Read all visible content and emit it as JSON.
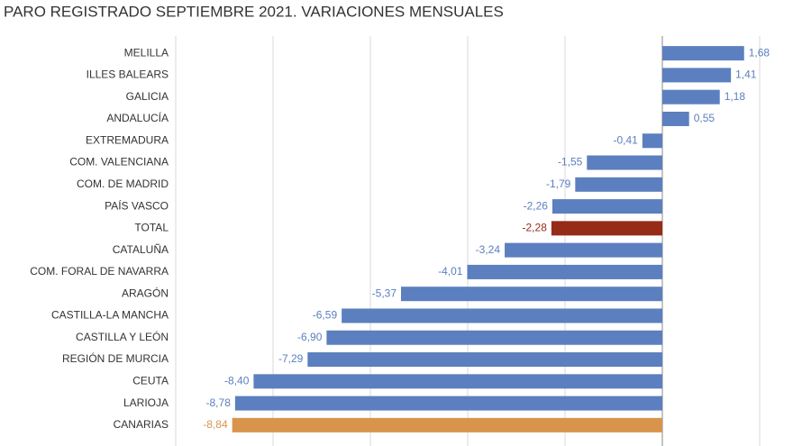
{
  "chart_data": {
    "type": "hbar",
    "title": "PARO REGISTRADO SEPTIEMBRE 2021. VARIACIONES MENSUALES",
    "categories": [
      "MELILLA",
      "ILLES BALEARS",
      "GALICIA",
      "ANDALUCÍA",
      "EXTREMADURA",
      "COM. VALENCIANA",
      "COM. DE MADRID",
      "PAÍS VASCO",
      "TOTAL",
      "CATALUÑA",
      "COM. FORAL DE NAVARRA",
      "ARAGÓN",
      "CASTILLA-LA MANCHA",
      "CASTILLA Y LEÓN",
      "REGIÓN DE MURCIA",
      "CEUTA",
      "LARIOJA",
      "CANARIAS"
    ],
    "values": [
      1.68,
      1.41,
      1.18,
      0.55,
      -0.41,
      -1.55,
      -1.79,
      -2.26,
      -2.28,
      -3.24,
      -4.01,
      -5.37,
      -6.59,
      -6.9,
      -7.29,
      -8.4,
      -8.78,
      -8.84
    ],
    "value_labels": [
      "1,68",
      "1,41",
      "1,18",
      "0,55",
      "-0,41",
      "-1,55",
      "-1,79",
      "-2,26",
      "-2,28",
      "-3,24",
      "-4,01",
      "-5,37",
      "-6,59",
      "-6,90",
      "-7,29",
      "-8,40",
      "-8,78",
      "-8,84"
    ],
    "colors": [
      "#5b7fbf",
      "#5b7fbf",
      "#5b7fbf",
      "#5b7fbf",
      "#5b7fbf",
      "#5b7fbf",
      "#5b7fbf",
      "#5b7fbf",
      "#962b17",
      "#5b7fbf",
      "#5b7fbf",
      "#5b7fbf",
      "#5b7fbf",
      "#5b7fbf",
      "#5b7fbf",
      "#5b7fbf",
      "#5b7fbf",
      "#d9944b"
    ],
    "xlim": [
      -10,
      2
    ],
    "xticks": [
      -10,
      -8,
      -6,
      -4,
      -2,
      0,
      2
    ],
    "grid": true
  }
}
